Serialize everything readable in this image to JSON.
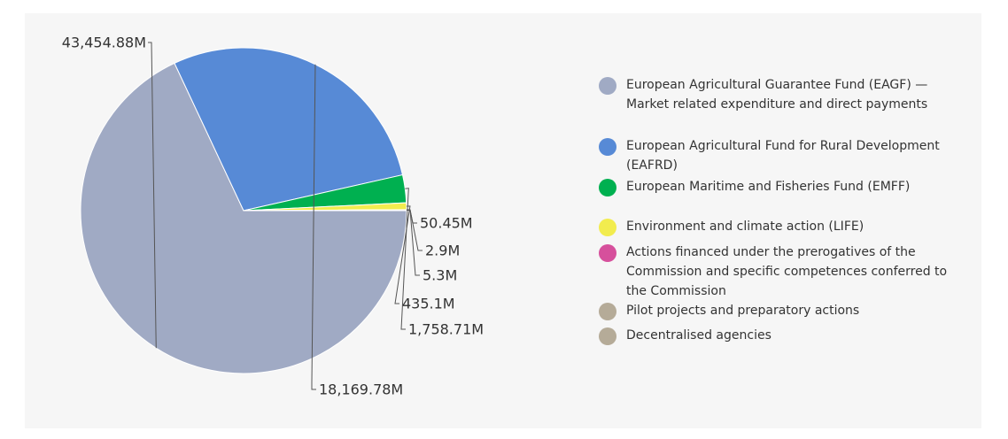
{
  "chart_data": {
    "type": "pie",
    "slices": [
      {
        "label": "European Agricultural Guarantee Fund (EAGF) — Market related expenditure and direct payments",
        "value": 43454.88,
        "display": "43,454.88M",
        "color": "#a0aac4"
      },
      {
        "label": "European Agricultural Fund for Rural Development (EAFRD)",
        "value": 18169.78,
        "display": "18,169.78M",
        "color": "#578ad6"
      },
      {
        "label": "European Maritime and Fisheries Fund (EMFF)",
        "value": 1758.71,
        "display": "1,758.71M",
        "color": "#00b050"
      },
      {
        "label": "Environment and climate action (LIFE)",
        "value": 435.1,
        "display": "435.1M",
        "color": "#f2ec4e"
      },
      {
        "label": "Actions financed under the prerogatives of the Commission and specific competences conferred to the Commission",
        "value": 5.3,
        "display": "5.3M",
        "color": "#d6509c"
      },
      {
        "label": "Pilot projects and preparatory actions",
        "value": 2.9,
        "display": "2.9M",
        "color": "#b5ab98"
      },
      {
        "label": "Decentralised agencies",
        "value": 50.45,
        "display": "50.45M",
        "color": "#b5ab98"
      }
    ],
    "legend_position": "right"
  }
}
